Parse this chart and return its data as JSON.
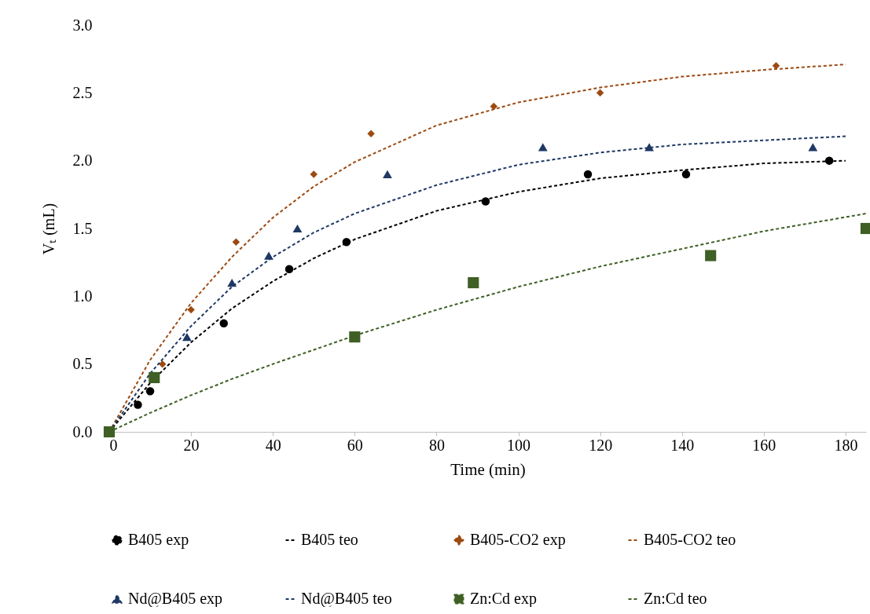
{
  "chart_data": {
    "type": "scatter",
    "xlabel": "Time (min)",
    "ylabel": "Vₜ (mL)",
    "xlim": [
      0,
      185
    ],
    "xticks": [
      0,
      20,
      40,
      60,
      80,
      100,
      120,
      140,
      160,
      180
    ],
    "ylim": [
      0,
      3
    ],
    "yticks": [
      {
        "value": 0,
        "label": "0.0"
      },
      {
        "value": 0.5,
        "label": "0.5"
      },
      {
        "value": 1,
        "label": "1.0"
      },
      {
        "value": 1.5,
        "label": "1.5"
      },
      {
        "value": 2,
        "label": "2.0"
      },
      {
        "value": 2.5,
        "label": "2.5"
      },
      {
        "value": 3,
        "label": "3.0"
      }
    ],
    "grid": false,
    "legend": "bottom",
    "series": [
      {
        "name": "B405 exp",
        "type": "scatter",
        "marker": "circle",
        "color": "#000000",
        "x": [
          7,
          10,
          28,
          44,
          58,
          92,
          117,
          141,
          176
        ],
        "values": [
          0.2,
          0.3,
          0.8,
          1.2,
          1.4,
          1.7,
          1.9,
          1.9,
          2.0
        ]
      },
      {
        "name": "B405 teo",
        "type": "line",
        "line_style": "dashed",
        "color": "#000000",
        "x": [
          0,
          10,
          20,
          30,
          40,
          50,
          60,
          80,
          100,
          120,
          140,
          160,
          180
        ],
        "values": [
          0,
          0.36,
          0.66,
          0.91,
          1.11,
          1.28,
          1.42,
          1.63,
          1.77,
          1.87,
          1.93,
          1.98,
          2.0
        ]
      },
      {
        "name": "B405-CO2 exp",
        "type": "scatter",
        "marker": "diamond",
        "color": "#9c4a12",
        "x": [
          13,
          20,
          31,
          50,
          64,
          94,
          120,
          163
        ],
        "values": [
          0.5,
          0.9,
          1.4,
          1.9,
          2.2,
          2.4,
          2.5,
          2.7
        ]
      },
      {
        "name": "B405-CO2 teo",
        "type": "line",
        "line_style": "dashed",
        "color": "#9c4a12",
        "x": [
          0,
          10,
          20,
          30,
          40,
          50,
          60,
          80,
          100,
          120,
          140,
          160,
          180
        ],
        "values": [
          0,
          0.53,
          0.95,
          1.29,
          1.58,
          1.81,
          1.99,
          2.26,
          2.43,
          2.54,
          2.62,
          2.67,
          2.71
        ]
      },
      {
        "name": "Nd@B405 exp",
        "type": "scatter",
        "marker": "triangle",
        "color": "#1f3864",
        "x": [
          19,
          30,
          39,
          46,
          68,
          106,
          132,
          172
        ],
        "values": [
          0.7,
          1.1,
          1.3,
          1.5,
          1.9,
          2.1,
          2.1,
          2.1
        ]
      },
      {
        "name": "Nd@B405 teo",
        "type": "line",
        "line_style": "dashed",
        "color": "#1f3864",
        "x": [
          0,
          10,
          20,
          30,
          40,
          50,
          60,
          80,
          100,
          120,
          140,
          160,
          180
        ],
        "values": [
          0,
          0.43,
          0.78,
          1.07,
          1.29,
          1.47,
          1.61,
          1.82,
          1.97,
          2.06,
          2.12,
          2.15,
          2.18
        ]
      },
      {
        "name": "Zn:Cd exp",
        "type": "scatter",
        "marker": "square",
        "color": "#3f5f25",
        "x": [
          0,
          11,
          60,
          89,
          147,
          185
        ],
        "values": [
          0,
          0.4,
          0.7,
          1.1,
          1.3,
          1.5
        ]
      },
      {
        "name": "Zn:Cd teo",
        "type": "line",
        "line_style": "dashed",
        "color": "#3f5f25",
        "x": [
          0,
          10,
          20,
          30,
          40,
          60,
          80,
          100,
          120,
          140,
          160,
          185
        ],
        "values": [
          0,
          0.14,
          0.27,
          0.39,
          0.5,
          0.71,
          0.9,
          1.07,
          1.22,
          1.35,
          1.48,
          1.61
        ]
      }
    ]
  }
}
